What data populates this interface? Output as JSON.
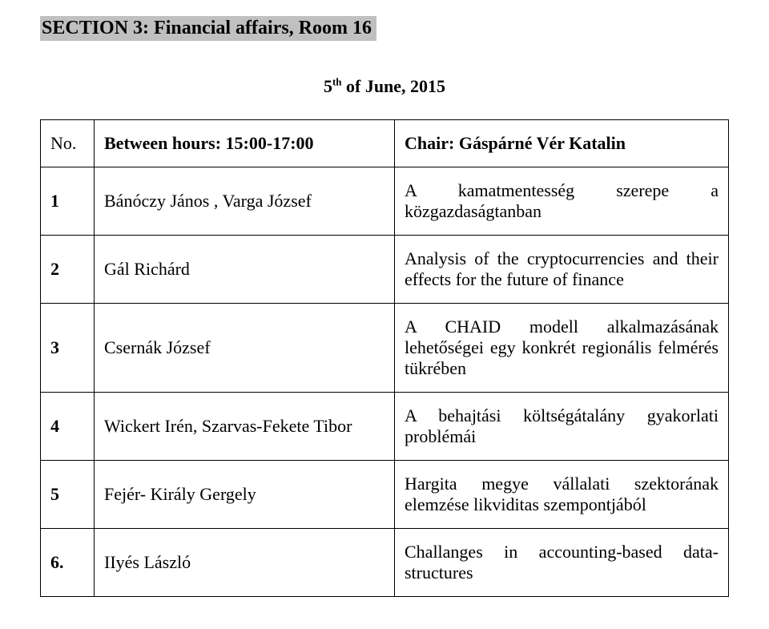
{
  "section": {
    "label": "SECTION 3: Financial affairs, Room 16"
  },
  "date": {
    "pre": "5",
    "sup": "th",
    "rest": " of June, 2015"
  },
  "header": {
    "no": "No.",
    "hours": "Between hours: 15:00-17:00",
    "chair": "Chair: Gáspárné Vér Katalin"
  },
  "rows": [
    {
      "n": "1",
      "a": "Bánóczy János , Varga József",
      "b": "A kamatmentesség szerepe a közgazdaságtanban"
    },
    {
      "n": "2",
      "a": "Gál Richárd",
      "b": "Analysis of the cryptocurrencies and their effects for the future of finance"
    },
    {
      "n": "3",
      "a": "Csernák József",
      "b": "A CHAID modell alkalmazásának lehetőségei egy konkrét regionális felmérés tükrében"
    },
    {
      "n": "4",
      "a": "Wickert Irén, Szarvas-Fekete Tibor",
      "b": "A behajtási költségátalány gyakorlati problémái"
    },
    {
      "n": "5",
      "a": "Fejér- Király Gergely",
      "b": "Hargita megye vállalati szektorának elemzése likviditas szempontjából"
    },
    {
      "n": "6.",
      "a": "IIyés László",
      "b": "Challanges in accounting-based data-structures"
    }
  ]
}
